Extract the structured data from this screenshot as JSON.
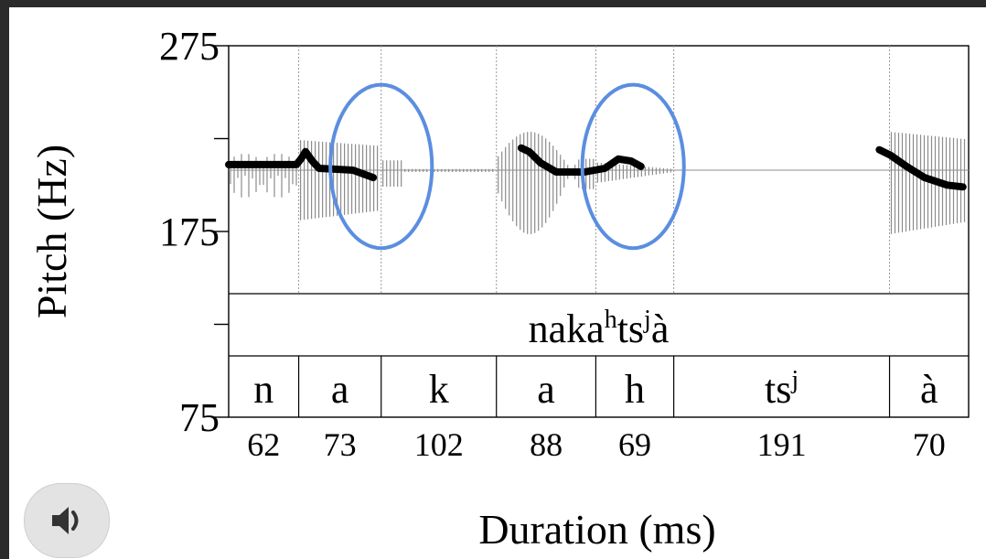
{
  "chart_data": {
    "type": "line",
    "title": "",
    "xlabel": "Duration (ms)",
    "ylabel": "Pitch (Hz)",
    "ylim": [
      75,
      275
    ],
    "yticks": [
      75,
      125,
      175,
      225,
      275
    ],
    "ytick_labels": [
      "75",
      "",
      "175",
      "",
      "275"
    ],
    "word_tier": {
      "main": "naka",
      "sup1": "h",
      "mid": "ts",
      "sup2": "j",
      "end": "à"
    },
    "segments": [
      {
        "label": "n",
        "sup": "",
        "duration": 62
      },
      {
        "label": "a",
        "sup": "",
        "duration": 73
      },
      {
        "label": "k",
        "sup": "",
        "duration": 102
      },
      {
        "label": "a",
        "sup": "",
        "duration": 88
      },
      {
        "label": "h",
        "sup": "",
        "duration": 69
      },
      {
        "label": "ts",
        "sup": "j",
        "duration": 191
      },
      {
        "label": "à",
        "sup": "",
        "duration": 70
      }
    ],
    "pitch_series": [
      {
        "x": [
          0,
          28,
          60,
          64,
          68,
          74,
          80,
          110,
          128
        ],
        "y": [
          211,
          211,
          211,
          214,
          218,
          213,
          209,
          208,
          204
        ]
      },
      {
        "x": [
          259,
          266,
          276,
          290,
          315,
          333,
          345,
          356,
          365
        ],
        "y": [
          220,
          218,
          212,
          207,
          207,
          209,
          214,
          213,
          210
        ]
      },
      {
        "x": [
          576,
          586,
          600,
          616,
          636,
          650
        ],
        "y": [
          219,
          216,
          210,
          204,
          200,
          199
        ]
      }
    ],
    "highlight_ellipses": [
      {
        "x_center": 135,
        "y_center": 210,
        "x_radius": 45,
        "y_radius": 44
      },
      {
        "x_center": 358,
        "y_center": 210,
        "x_radius": 45,
        "y_radius": 44
      }
    ],
    "colors": {
      "pitch": "#000000",
      "waveform": "#8c8c8c",
      "highlight": "#5b8ee0",
      "background": "#2b2b2b"
    }
  },
  "controls": {
    "audio_button_icon": "speaker-icon"
  }
}
